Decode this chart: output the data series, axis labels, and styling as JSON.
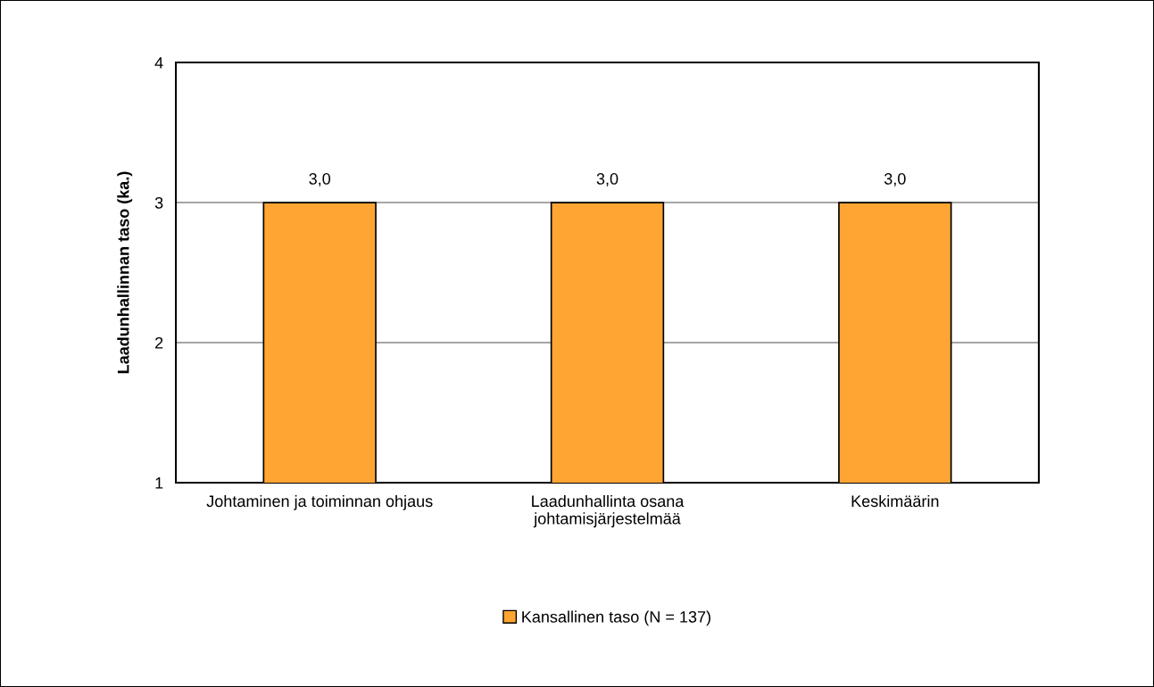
{
  "chart_data": {
    "type": "bar",
    "ylabel": "Laadunhallinnan taso (ka.)",
    "categories": [
      "Johtaminen ja toiminnan ohjaus",
      "Laadunhallinta osana\njohtamisjärjestelmää",
      "Keskimäärin"
    ],
    "series": [
      {
        "name": "Kansallinen taso (N = 137)",
        "color": "#ffa533",
        "values": [
          3.0,
          3.0,
          3.0
        ],
        "value_labels": [
          "3,0",
          "3,0",
          "3,0"
        ]
      }
    ],
    "ylim": [
      1,
      4
    ],
    "yticks": [
      1,
      2,
      3,
      4
    ],
    "grid": "y",
    "legend": "bottom"
  }
}
